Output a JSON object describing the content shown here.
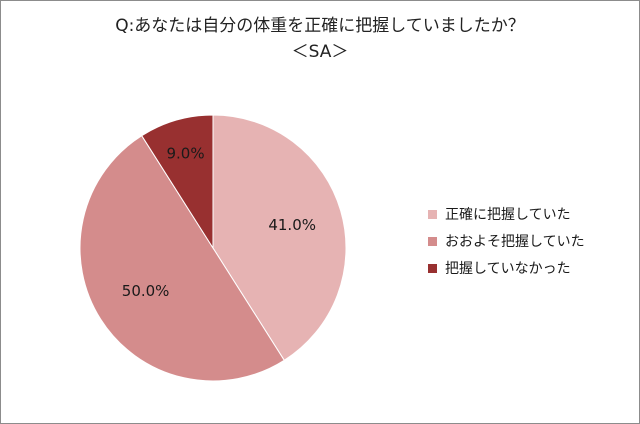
{
  "chart_data": {
    "type": "pie",
    "title": "Q:あなたは自分の体重を正確に把握していましたか？",
    "subtitle": "＜SA＞",
    "categories": [
      "正確に把握していた",
      "おおよそ把握していた",
      "把握していなかった"
    ],
    "values": [
      41.0,
      50.0,
      9.0
    ],
    "value_labels": [
      "41.0%",
      "50.0%",
      "9.0%"
    ],
    "colors": [
      "#e6b3b3",
      "#d48c8c",
      "#983030"
    ],
    "legend_position": "right"
  }
}
